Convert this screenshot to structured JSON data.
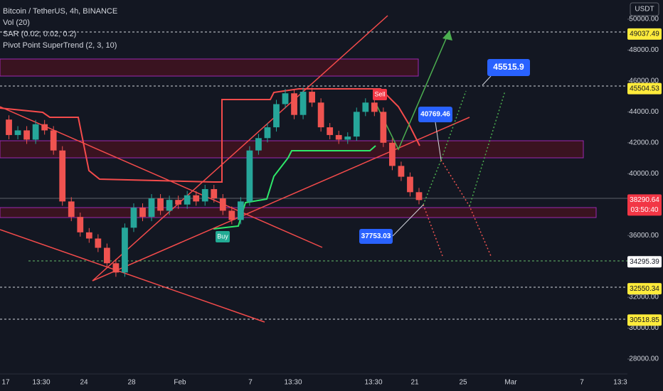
{
  "chart_data": {
    "type": "candlestick",
    "title": "Bitcoin / TetherUS, 4h, BINANCE",
    "indicators": [
      "Vol (20)",
      "SAR (0.02, 0.02, 0.2)",
      "Pivot Point SuperTrend (2, 3, 10)"
    ],
    "currency": "USDT",
    "values": [
      43500,
      42500,
      42800,
      42200,
      43200,
      42800,
      41500,
      38200,
      37200,
      36200,
      35800,
      35200,
      34200,
      33600,
      36500,
      37800,
      37200,
      38400,
      37600,
      38300,
      38000,
      38600,
      38200,
      39000,
      38400,
      37600,
      37000,
      38200,
      41500,
      42300,
      43000,
      44500,
      45200,
      43800,
      45300,
      44600,
      43000,
      42500,
      42200,
      42400,
      44000,
      44600,
      44000,
      42000,
      40500,
      39800,
      38800,
      38290
    ],
    "up_color": "#26a69a",
    "down_color": "#ef5350",
    "ylim": [
      25930,
      51240
    ],
    "yticks": [
      {
        "value": 28000,
        "label": "28000.00"
      },
      {
        "value": 30000,
        "label": "30000.00"
      },
      {
        "value": 32000,
        "label": "32000.00"
      },
      {
        "value": 36000,
        "label": "36000.00"
      },
      {
        "value": 40000,
        "label": "40000.00"
      },
      {
        "value": 42000,
        "label": "42000.00"
      },
      {
        "value": 44000,
        "label": "44000.00"
      },
      {
        "value": 46000,
        "label": "46000.00"
      },
      {
        "value": 48000,
        "label": "48000.00"
      },
      {
        "value": 50000,
        "label": "50000.00"
      }
    ],
    "x_labels": [
      "17",
      "13:30",
      "24",
      "28",
      "Feb",
      "7",
      "13:30",
      "13:30",
      "21",
      "25",
      "Mar",
      "7",
      "13:3"
    ],
    "price_levels": [
      49037.49,
      45504.53,
      38290.64,
      34295.39,
      32550.34,
      30518.85
    ],
    "countdown": "03:50:40",
    "annotations": [
      45515.9,
      40769.46,
      37753.03
    ],
    "signals": [
      "Sell",
      "Buy"
    ]
  }
}
